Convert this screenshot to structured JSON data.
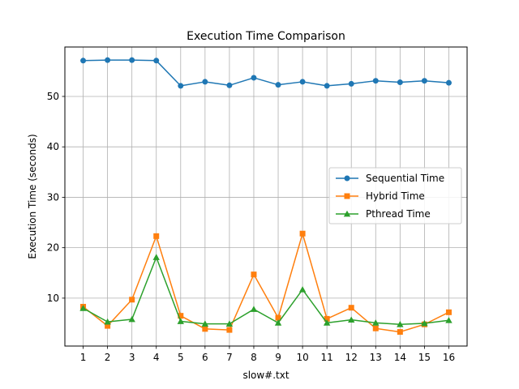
{
  "chart_data": {
    "type": "line",
    "title": "Execution Time Comparison",
    "xlabel": "slow#.txt",
    "ylabel": "Execution Time (seconds)",
    "x": [
      1,
      2,
      3,
      4,
      5,
      6,
      7,
      8,
      9,
      10,
      11,
      12,
      13,
      14,
      15,
      16
    ],
    "x_tick_labels": [
      "1",
      "2",
      "3",
      "4",
      "5",
      "6",
      "7",
      "8",
      "9",
      "10",
      "11",
      "12",
      "13",
      "14",
      "15",
      "16"
    ],
    "ylim": [
      0.5,
      59.8
    ],
    "y_ticks": [
      10,
      20,
      30,
      40,
      50
    ],
    "y_tick_labels": [
      "10",
      "20",
      "30",
      "40",
      "50"
    ],
    "grid": true,
    "legend_position": "center-right",
    "series": [
      {
        "name": "Sequential Time",
        "color": "#1f77b4",
        "marker": "circle",
        "values": [
          57.1,
          57.2,
          57.2,
          57.1,
          52.1,
          52.9,
          52.2,
          53.7,
          52.3,
          52.9,
          52.1,
          52.5,
          53.1,
          52.8,
          53.1,
          52.7
        ]
      },
      {
        "name": "Hybrid Time",
        "color": "#ff7f0e",
        "marker": "square",
        "values": [
          8.3,
          4.5,
          9.7,
          22.3,
          6.5,
          3.9,
          3.7,
          14.7,
          6.1,
          22.8,
          5.9,
          8.1,
          4.0,
          3.3,
          4.8,
          7.2
        ]
      },
      {
        "name": "Pthread Time",
        "color": "#2ca02c",
        "marker": "triangle",
        "values": [
          8.0,
          5.3,
          5.8,
          18.1,
          5.4,
          4.9,
          4.9,
          7.8,
          5.1,
          11.7,
          5.1,
          5.7,
          5.1,
          4.8,
          5.0,
          5.6
        ]
      }
    ]
  }
}
